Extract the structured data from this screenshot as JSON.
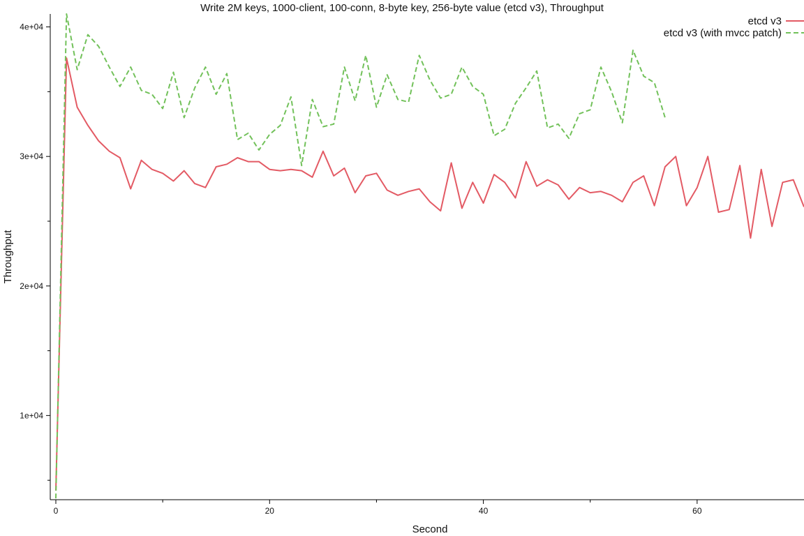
{
  "chart_data": {
    "type": "line",
    "title": "Write 2M keys, 1000-client, 100-conn, 8-byte key, 256-byte value (etcd v3), Throughput",
    "xlabel": "Second",
    "ylabel": "Throughput",
    "xlim": [
      0,
      70
    ],
    "ylim": [
      3500,
      41000
    ],
    "x_ticks": [
      0,
      20,
      40,
      60
    ],
    "x_tick_labels": [
      "0",
      "20",
      "40",
      "60"
    ],
    "x_minor_ticks": [
      10,
      30,
      50
    ],
    "y_ticks": [
      10000,
      20000,
      30000,
      40000
    ],
    "y_tick_labels": [
      "1e+04",
      "2e+04",
      "3e+04",
      "4e+04"
    ],
    "y_minor_ticks": [
      5000,
      15000,
      25000,
      35000
    ],
    "grid": false,
    "legend_position": "top-right",
    "series": [
      {
        "name": "etcd v3",
        "color": "#e35a64",
        "dash": "solid",
        "x": [
          0,
          1,
          2,
          3,
          4,
          5,
          6,
          7,
          8,
          9,
          10,
          11,
          12,
          13,
          14,
          15,
          16,
          17,
          18,
          19,
          20,
          21,
          22,
          23,
          24,
          25,
          26,
          27,
          28,
          29,
          30,
          31,
          32,
          33,
          34,
          35,
          36,
          37,
          38,
          39,
          40,
          41,
          42,
          43,
          44,
          45,
          46,
          47,
          48,
          49,
          50,
          51,
          52,
          53,
          54,
          55,
          56,
          57,
          58,
          59,
          60,
          61,
          62,
          63,
          64,
          65,
          66,
          67,
          68,
          69,
          70
        ],
        "values": [
          4200,
          37600,
          33800,
          32400,
          31200,
          30400,
          29900,
          27500,
          29700,
          29000,
          28700,
          28100,
          28900,
          27900,
          27600,
          29200,
          29400,
          29900,
          29600,
          29600,
          29000,
          28900,
          29000,
          28900,
          28400,
          30400,
          28500,
          29100,
          27200,
          28500,
          28700,
          27400,
          27000,
          27300,
          27500,
          26500,
          25800,
          29500,
          26000,
          28000,
          26400,
          28600,
          28000,
          26800,
          29600,
          27700,
          28200,
          27800,
          26700,
          27600,
          27200,
          27300,
          27000,
          26500,
          28000,
          28500,
          26200,
          29200,
          30000,
          26200,
          27600,
          30000,
          25700,
          25900,
          29300,
          23700,
          29000,
          24600,
          28000,
          28200,
          26100
        ]
      },
      {
        "name": "etcd v3 (with mvcc patch)",
        "color": "#72c15a",
        "dash": "dashed",
        "x": [
          0,
          1,
          2,
          3,
          4,
          5,
          6,
          7,
          8,
          9,
          10,
          11,
          12,
          13,
          14,
          15,
          16,
          17,
          18,
          19,
          20,
          21,
          22,
          23,
          24,
          25,
          26,
          27,
          28,
          29,
          30,
          31,
          32,
          33,
          34,
          35,
          36,
          37,
          38,
          39,
          40,
          41,
          42,
          43,
          44,
          45,
          46,
          47,
          48,
          49,
          50,
          51,
          52,
          53,
          54,
          55,
          56,
          57
        ],
        "values": [
          3600,
          41000,
          36700,
          39400,
          38500,
          36900,
          35400,
          36900,
          35100,
          34800,
          33700,
          36500,
          33000,
          35300,
          36900,
          34800,
          36400,
          31300,
          31800,
          30500,
          31700,
          32400,
          34600,
          29300,
          34400,
          32300,
          32500,
          36900,
          34300,
          37800,
          33800,
          36300,
          34400,
          34200,
          37800,
          35900,
          34500,
          34800,
          36900,
          35400,
          34800,
          31600,
          32100,
          34100,
          35300,
          36600,
          32200,
          32500,
          31400,
          33300,
          33600,
          36900,
          35000,
          32600,
          38200,
          36200,
          35700,
          33000
        ]
      }
    ]
  }
}
